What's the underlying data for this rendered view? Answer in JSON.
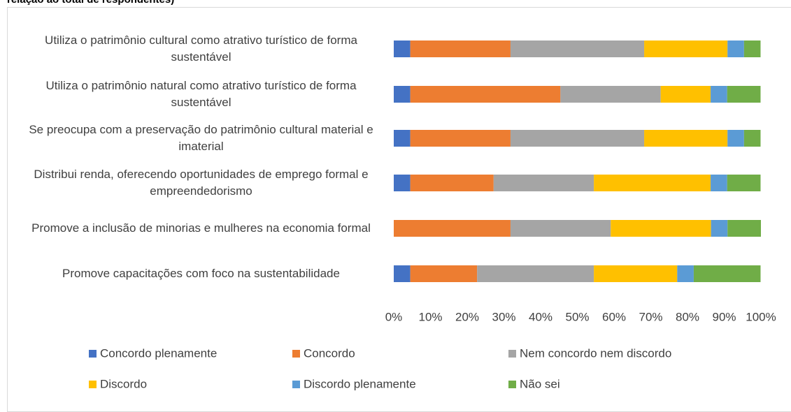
{
  "chart_data": {
    "type": "stacked_bar_horizontal",
    "title": "relação ao total de respondentes)",
    "categories": [
      "Utiliza o patrimônio cultural como atrativo turístico de forma sustentável",
      "Utiliza o patrimônio natural como atrativo turístico de forma sustentável",
      "Se preocupa com a preservação do patrimônio cultural material e imaterial",
      "Distribui renda, oferecendo oportunidades de emprego formal e empreendedorismo",
      "Promove a inclusão de minorias e mulheres na economia formal",
      "Promove capacitações com foco na sustentabilidade"
    ],
    "series": [
      {
        "name": "Concordo plenamente",
        "color": "#4472c4",
        "values": [
          4.5,
          4.5,
          4.5,
          4.5,
          0,
          4.5
        ]
      },
      {
        "name": "Concordo",
        "color": "#ed7d31",
        "values": [
          27.3,
          40.9,
          27.3,
          22.7,
          31.8,
          18.2
        ]
      },
      {
        "name": "Nem concordo nem discordo",
        "color": "#a5a5a5",
        "values": [
          36.4,
          27.3,
          36.4,
          27.3,
          27.3,
          31.8
        ]
      },
      {
        "name": "Discordo",
        "color": "#ffc000",
        "values": [
          22.7,
          13.6,
          22.7,
          31.8,
          27.3,
          22.7
        ]
      },
      {
        "name": "Discordo plenamente",
        "color": "#5b9bd5",
        "values": [
          4.5,
          4.5,
          4.5,
          4.5,
          4.5,
          4.5
        ]
      },
      {
        "name": "Não sei",
        "color": "#70ad47",
        "values": [
          4.5,
          9.1,
          4.5,
          9.1,
          9.1,
          18.2
        ]
      }
    ],
    "xlim": [
      0,
      100
    ],
    "xticks": [
      {
        "value": 0,
        "label": "0%"
      },
      {
        "value": 10,
        "label": "10%"
      },
      {
        "value": 20,
        "label": "20%"
      },
      {
        "value": 30,
        "label": "30%"
      },
      {
        "value": 40,
        "label": "40%"
      },
      {
        "value": 50,
        "label": "50%"
      },
      {
        "value": 60,
        "label": "60%"
      },
      {
        "value": 70,
        "label": "70%"
      },
      {
        "value": 80,
        "label": "80%"
      },
      {
        "value": 90,
        "label": "90%"
      },
      {
        "value": 100,
        "label": "100%"
      }
    ],
    "legend": "bottom"
  }
}
